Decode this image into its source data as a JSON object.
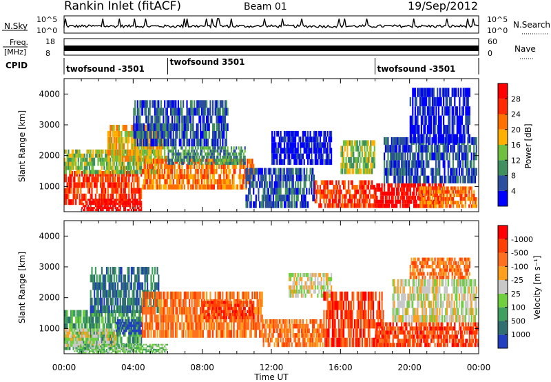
{
  "header": {
    "station": "Rankin Inlet (fitACF)",
    "beam": "Beam 01",
    "date": "19/Sep/2012"
  },
  "status_panels": {
    "nsky": {
      "label": "N.Sky",
      "ticks": [
        "10^5",
        "10^0"
      ]
    },
    "nsearch": {
      "label": "N.Search",
      "ticks": [
        "10^5",
        "10^0"
      ]
    },
    "freq": {
      "label_line1": "Freq.",
      "label_line2": "[MHz]",
      "ticks": [
        "18",
        "8"
      ]
    },
    "nave": {
      "label": "Nave",
      "ticks": [
        "60",
        "0"
      ]
    },
    "cpid": {
      "label": "CPID",
      "segments": [
        {
          "name": "twofsound -3501",
          "start_hour": 0.0
        },
        {
          "name": "twofsound 3501",
          "start_hour": 6.0
        },
        {
          "name": "twofsound -3501",
          "start_hour": 18.0
        }
      ]
    }
  },
  "chart_data": [
    {
      "type": "heatmap",
      "ylabel": "Slant Range [km]",
      "xlabel": "",
      "x_range_hours": [
        0,
        24
      ],
      "x_ticks": [
        "00:00",
        "04:00",
        "08:00",
        "12:00",
        "16:00",
        "20:00",
        "00:00"
      ],
      "ylim": [
        180,
        4500
      ],
      "y_ticks": [
        "1000",
        "2000",
        "3000",
        "4000"
      ],
      "colorbar": {
        "label": "Power [dB]",
        "labels": [
          "4",
          "8",
          "12",
          "16",
          "20",
          "24",
          "28"
        ],
        "colors": [
          "#0000ff",
          "#2b4f9e",
          "#3f8f5f",
          "#6fc03f",
          "#ffb000",
          "#ff7000",
          "#ff2a00",
          "#ff0000"
        ]
      },
      "regions": [
        {
          "t0": 0.0,
          "t1": 4.5,
          "r0": 400,
          "r1": 1500,
          "level": 6
        },
        {
          "t0": 1.0,
          "t1": 4.5,
          "r0": 200,
          "r1": 600,
          "level": 7
        },
        {
          "t0": 0.0,
          "t1": 5.5,
          "r0": 1400,
          "r1": 2200,
          "level": 3
        },
        {
          "t0": 2.5,
          "t1": 6.0,
          "r0": 1800,
          "r1": 3000,
          "level": 4
        },
        {
          "t0": 4.5,
          "t1": 11.0,
          "r0": 900,
          "r1": 1900,
          "level": 5
        },
        {
          "t0": 6.0,
          "t1": 10.5,
          "r0": 1700,
          "r1": 2300,
          "level": 2
        },
        {
          "t0": 4.0,
          "t1": 9.5,
          "r0": 2300,
          "r1": 3800,
          "level": 1
        },
        {
          "t0": 10.5,
          "t1": 14.5,
          "r0": 300,
          "r1": 1600,
          "level": 1
        },
        {
          "t0": 12.0,
          "t1": 15.5,
          "r0": 1700,
          "r1": 2800,
          "level": 0
        },
        {
          "t0": 14.5,
          "t1": 18.0,
          "r0": 300,
          "r1": 1200,
          "level": 6
        },
        {
          "t0": 16.0,
          "t1": 18.0,
          "r0": 1400,
          "r1": 2500,
          "level": 3
        },
        {
          "t0": 18.0,
          "t1": 22.0,
          "r0": 300,
          "r1": 1100,
          "level": 7
        },
        {
          "t0": 18.5,
          "t1": 23.9,
          "r0": 1100,
          "r1": 2600,
          "level": 1
        },
        {
          "t0": 20.5,
          "t1": 23.9,
          "r0": 300,
          "r1": 1000,
          "level": 5
        },
        {
          "t0": 20.0,
          "t1": 23.5,
          "r0": 2400,
          "r1": 4200,
          "level": 0
        }
      ]
    },
    {
      "type": "heatmap",
      "ylabel": "Slant Range [km]",
      "xlabel": "Time UT",
      "x_range_hours": [
        0,
        24
      ],
      "x_ticks": [
        "00:00",
        "04:00",
        "08:00",
        "12:00",
        "16:00",
        "20:00",
        "00:00"
      ],
      "ylim": [
        180,
        4500
      ],
      "y_ticks": [
        "1000",
        "2000",
        "3000",
        "4000"
      ],
      "colorbar": {
        "label": "Velocity [m s⁻¹]",
        "labels": [
          "1000",
          "500",
          "100",
          "25",
          "-25",
          "-100",
          "-500",
          "-1000"
        ],
        "colors": [
          "#2040c0",
          "#2f6f6f",
          "#3f9f5f",
          "#6fcf3f",
          "#c8c8c8",
          "#ff9f20",
          "#ff7020",
          "#ff4000",
          "#ff0000"
        ]
      },
      "regions": [
        {
          "t0": 0.0,
          "t1": 4.5,
          "r0": 300,
          "r1": 1600,
          "level": 2
        },
        {
          "t0": 0.0,
          "t1": 3.0,
          "r0": 400,
          "r1": 1000,
          "level": 4
        },
        {
          "t0": 1.5,
          "t1": 5.5,
          "r0": 1500,
          "r1": 3000,
          "level": 1
        },
        {
          "t0": 3.0,
          "t1": 4.5,
          "r0": 800,
          "r1": 1300,
          "level": 0
        },
        {
          "t0": 4.5,
          "t1": 11.5,
          "r0": 700,
          "r1": 2200,
          "level": 6
        },
        {
          "t0": 8.0,
          "t1": 11.0,
          "r0": 1300,
          "r1": 1900,
          "level": 7
        },
        {
          "t0": 11.5,
          "t1": 15.0,
          "r0": 400,
          "r1": 1300,
          "level": 6
        },
        {
          "t0": 13.0,
          "t1": 15.5,
          "r0": 2000,
          "r1": 2800,
          "level": 4
        },
        {
          "t0": 15.0,
          "t1": 18.5,
          "r0": 400,
          "r1": 2200,
          "level": 7
        },
        {
          "t0": 18.0,
          "t1": 24.0,
          "r0": 400,
          "r1": 1200,
          "level": 7
        },
        {
          "t0": 19.0,
          "t1": 23.9,
          "r0": 1200,
          "r1": 2600,
          "level": 4
        },
        {
          "t0": 20.0,
          "t1": 23.5,
          "r0": 2600,
          "r1": 3300,
          "level": 6
        },
        {
          "t0": 0.5,
          "t1": 6.0,
          "r0": 180,
          "r1": 500,
          "level": 3
        }
      ]
    }
  ]
}
